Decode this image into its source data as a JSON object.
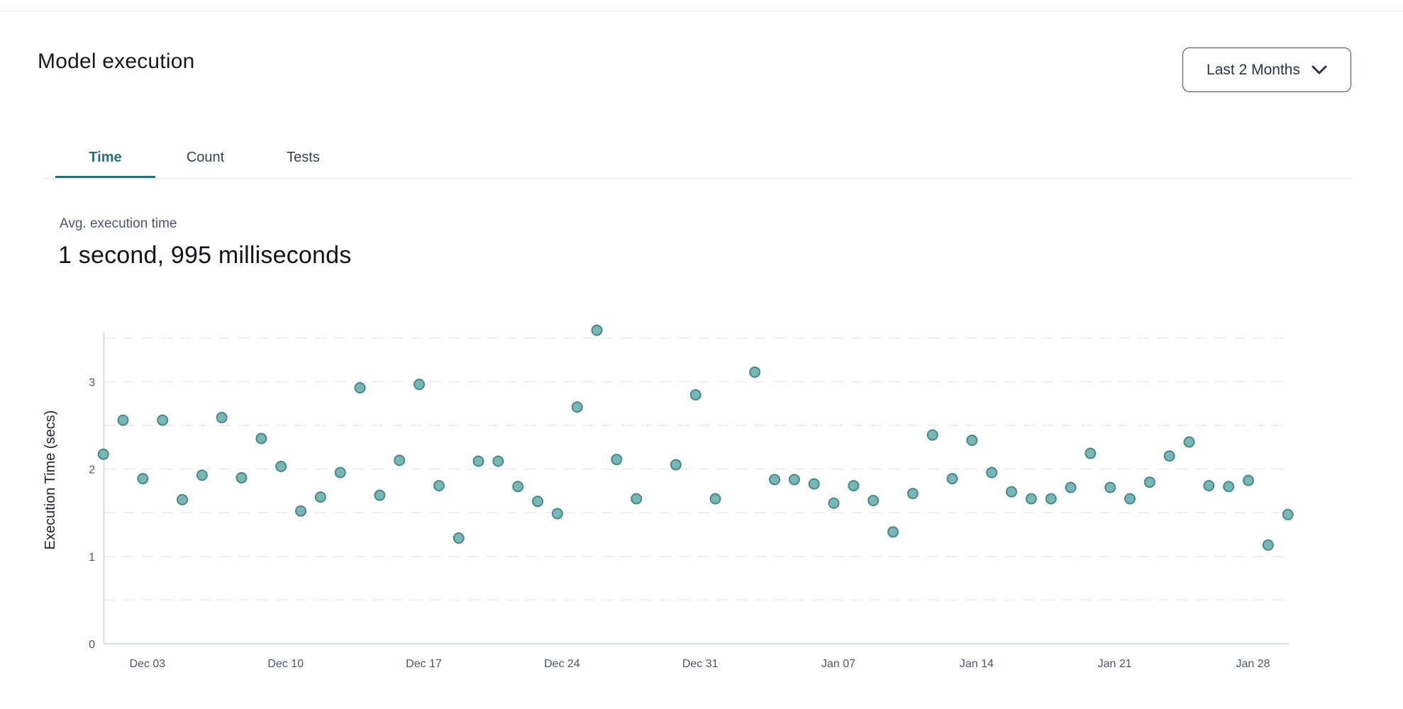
{
  "header": {
    "title": "Model execution",
    "range_selector": {
      "value": "Last 2 Months"
    }
  },
  "tabs": {
    "items": [
      {
        "label": "Time",
        "active": true
      },
      {
        "label": "Count",
        "active": false
      },
      {
        "label": "Tests",
        "active": false
      }
    ]
  },
  "stat": {
    "label": "Avg. execution time",
    "value": "1 second, 995 milliseconds"
  },
  "colors": {
    "accent_teal": "#2b6f75",
    "dot_fill": "#79b6b7",
    "dot_stroke": "#458a8b",
    "grid": "#e7e9ed",
    "axis": "#ccd2da",
    "tick_text": "#4d5668",
    "axis_title_text": "#1d222b"
  },
  "chart_data": {
    "type": "scatter",
    "title": "",
    "xlabel": "",
    "ylabel": "Execution Time (secs)",
    "ylim": [
      0,
      3.6
    ],
    "y_ticks": [
      0,
      1,
      2,
      3
    ],
    "gridline_values": [
      0.5,
      1,
      1.5,
      2,
      2.5,
      3,
      3.5
    ],
    "grid": "dashed",
    "legend": "none",
    "x_tick_labels": [
      {
        "label": "Dec 03",
        "day": 2
      },
      {
        "label": "Dec 10",
        "day": 9
      },
      {
        "label": "Dec 17",
        "day": 16
      },
      {
        "label": "Dec 24",
        "day": 23
      },
      {
        "label": "Dec 31",
        "day": 30
      },
      {
        "label": "Jan 07",
        "day": 37
      },
      {
        "label": "Jan 14",
        "day": 44
      },
      {
        "label": "Jan 21",
        "day": 51
      },
      {
        "label": "Jan 28",
        "day": 58
      }
    ],
    "points": [
      {
        "date": "Dec 01",
        "day": 0,
        "value": 2.17
      },
      {
        "date": "Dec 02",
        "day": 1,
        "value": 2.56
      },
      {
        "date": "Dec 03",
        "day": 2,
        "value": 1.89
      },
      {
        "date": "Dec 04",
        "day": 3,
        "value": 2.56
      },
      {
        "date": "Dec 05",
        "day": 4,
        "value": 1.65
      },
      {
        "date": "Dec 06",
        "day": 5,
        "value": 1.93
      },
      {
        "date": "Dec 07",
        "day": 6,
        "value": 2.59
      },
      {
        "date": "Dec 08",
        "day": 7,
        "value": 1.9
      },
      {
        "date": "Dec 09",
        "day": 8,
        "value": 2.35
      },
      {
        "date": "Dec 10",
        "day": 9,
        "value": 2.03
      },
      {
        "date": "Dec 11",
        "day": 10,
        "value": 1.52
      },
      {
        "date": "Dec 12",
        "day": 11,
        "value": 1.68
      },
      {
        "date": "Dec 13",
        "day": 12,
        "value": 1.96
      },
      {
        "date": "Dec 14",
        "day": 13,
        "value": 2.93
      },
      {
        "date": "Dec 15",
        "day": 14,
        "value": 1.7
      },
      {
        "date": "Dec 16",
        "day": 15,
        "value": 2.1
      },
      {
        "date": "Dec 17",
        "day": 16,
        "value": 2.97
      },
      {
        "date": "Dec 18",
        "day": 17,
        "value": 1.81
      },
      {
        "date": "Dec 19",
        "day": 18,
        "value": 1.21
      },
      {
        "date": "Dec 20",
        "day": 19,
        "value": 2.09
      },
      {
        "date": "Dec 21",
        "day": 20,
        "value": 2.09
      },
      {
        "date": "Dec 22",
        "day": 21,
        "value": 1.8
      },
      {
        "date": "Dec 23",
        "day": 22,
        "value": 1.63
      },
      {
        "date": "Dec 24",
        "day": 23,
        "value": 1.49
      },
      {
        "date": "Dec 25",
        "day": 24,
        "value": 2.71
      },
      {
        "date": "Dec 26",
        "day": 25,
        "value": 3.59
      },
      {
        "date": "Dec 27",
        "day": 26,
        "value": 2.11
      },
      {
        "date": "Dec 28",
        "day": 27,
        "value": 1.66
      },
      {
        "date": "Dec 30",
        "day": 29,
        "value": 2.05
      },
      {
        "date": "Dec 31",
        "day": 30,
        "value": 2.85
      },
      {
        "date": "Jan 01",
        "day": 31,
        "value": 1.66
      },
      {
        "date": "Jan 03",
        "day": 33,
        "value": 3.11
      },
      {
        "date": "Jan 04",
        "day": 34,
        "value": 1.88
      },
      {
        "date": "Jan 05",
        "day": 35,
        "value": 1.88
      },
      {
        "date": "Jan 06",
        "day": 36,
        "value": 1.83
      },
      {
        "date": "Jan 07",
        "day": 37,
        "value": 1.61
      },
      {
        "date": "Jan 08",
        "day": 38,
        "value": 1.81
      },
      {
        "date": "Jan 09",
        "day": 39,
        "value": 1.64
      },
      {
        "date": "Jan 10",
        "day": 40,
        "value": 1.28
      },
      {
        "date": "Jan 11",
        "day": 41,
        "value": 1.72
      },
      {
        "date": "Jan 12",
        "day": 42,
        "value": 2.39
      },
      {
        "date": "Jan 13",
        "day": 43,
        "value": 1.89
      },
      {
        "date": "Jan 14",
        "day": 44,
        "value": 2.33
      },
      {
        "date": "Jan 15",
        "day": 45,
        "value": 1.96
      },
      {
        "date": "Jan 16",
        "day": 46,
        "value": 1.74
      },
      {
        "date": "Jan 17",
        "day": 47,
        "value": 1.66
      },
      {
        "date": "Jan 18",
        "day": 48,
        "value": 1.66
      },
      {
        "date": "Jan 19",
        "day": 49,
        "value": 1.79
      },
      {
        "date": "Jan 20",
        "day": 50,
        "value": 2.18
      },
      {
        "date": "Jan 21",
        "day": 51,
        "value": 1.79
      },
      {
        "date": "Jan 22",
        "day": 52,
        "value": 1.66
      },
      {
        "date": "Jan 23",
        "day": 53,
        "value": 1.85
      },
      {
        "date": "Jan 24",
        "day": 54,
        "value": 2.15
      },
      {
        "date": "Jan 25",
        "day": 55,
        "value": 2.31
      },
      {
        "date": "Jan 26",
        "day": 56,
        "value": 1.81
      },
      {
        "date": "Jan 27",
        "day": 57,
        "value": 1.8
      },
      {
        "date": "Jan 28",
        "day": 58,
        "value": 1.87
      },
      {
        "date": "Jan 29",
        "day": 59,
        "value": 1.13
      },
      {
        "date": "Jan 30",
        "day": 60,
        "value": 1.48
      }
    ]
  }
}
